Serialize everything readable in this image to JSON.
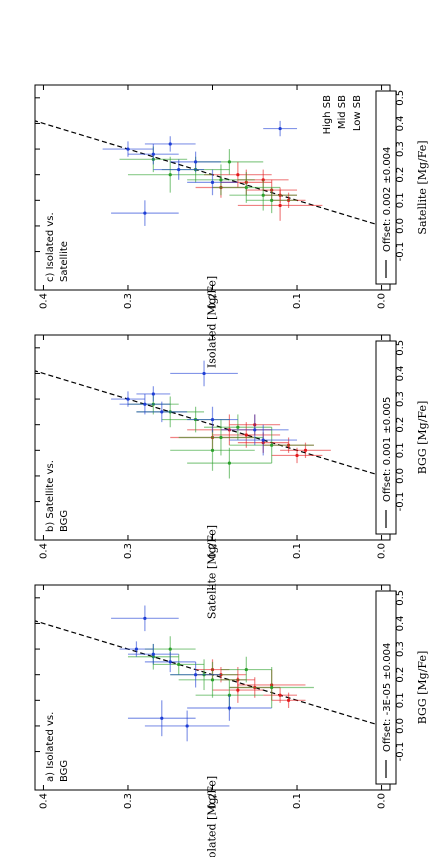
{
  "chart_data": [
    {
      "type": "scatter",
      "title": [
        "a) Isolated vs.",
        "BGG"
      ],
      "xlabel": "BGG [Mg/Fe]",
      "ylabel": "Isolated [Mg/Fe]",
      "legend_text": "Offset: -3E-05 ±0.004",
      "xlim": [
        -0.25,
        0.55
      ],
      "ylim": [
        -0.01,
        0.41
      ],
      "xticks": [
        -0.1,
        {
          "value": 0,
          "label": "0.0"
        },
        0.1,
        0.2,
        0.3,
        0.4,
        0.5
      ],
      "yticks": [
        {
          "value": 0,
          "label": "0.0"
        },
        0.1,
        0.2,
        0.3,
        0.4
      ],
      "series": [
        {
          "color": "#e41a1c",
          "x": [
            0.12,
            0.15,
            0.18,
            0.2,
            0.16,
            0.22,
            0.14,
            0.1
          ],
          "values": [
            0.12,
            0.15,
            0.17,
            0.19,
            0.13,
            0.2,
            0.17,
            0.11
          ],
          "xerr": [
            0.03,
            0.04,
            0.05,
            0.03,
            0.06,
            0.04,
            0.05,
            0.03
          ],
          "yerr": [
            0.02,
            0.03,
            0.02,
            0.03,
            0.04,
            0.02,
            0.03,
            0.02
          ]
        },
        {
          "color": "#2ca02c",
          "x": [
            0.27,
            0.2,
            0.24,
            0.15,
            0.3,
            0.18,
            0.22,
            0.12
          ],
          "values": [
            0.27,
            0.21,
            0.24,
            0.13,
            0.25,
            0.2,
            0.16,
            0.18
          ],
          "xerr": [
            0.05,
            0.06,
            0.04,
            0.08,
            0.05,
            0.07,
            0.05,
            0.06
          ],
          "yerr": [
            0.03,
            0.04,
            0.03,
            0.05,
            0.03,
            0.04,
            0.03,
            0.04
          ]
        },
        {
          "color": "#1f3fd6",
          "x": [
            0.3,
            0.28,
            0.42,
            0.0,
            0.03,
            0.25,
            0.2,
            0.07
          ],
          "values": [
            0.29,
            0.27,
            0.28,
            0.23,
            0.26,
            0.25,
            0.22,
            0.18
          ],
          "xerr": [
            0.03,
            0.04,
            0.05,
            0.06,
            0.07,
            0.04,
            0.05,
            0.05
          ],
          "yerr": [
            0.02,
            0.03,
            0.04,
            0.05,
            0.04,
            0.03,
            0.03,
            0.05
          ]
        }
      ]
    },
    {
      "type": "scatter",
      "title": [
        "b) Satellite vs.",
        "BGG"
      ],
      "xlabel": "BGG [Mg/Fe]",
      "ylabel": "Satellite [Mg/Fe]",
      "legend_text": "Offset: 0.001 ±0.005",
      "xlim": [
        -0.25,
        0.55
      ],
      "ylim": [
        -0.01,
        0.41
      ],
      "xticks": [
        -0.1,
        {
          "value": 0,
          "label": "0.0"
        },
        0.1,
        0.2,
        0.3,
        0.4,
        0.5
      ],
      "yticks": [
        {
          "value": 0,
          "label": "0.0"
        },
        0.1,
        0.2,
        0.3,
        0.4
      ],
      "series": [
        {
          "color": "#e41a1c",
          "x": [
            0.1,
            0.16,
            0.13,
            0.2,
            0.18,
            0.12,
            0.15,
            0.08
          ],
          "values": [
            0.09,
            0.16,
            0.14,
            0.15,
            0.18,
            0.11,
            0.2,
            0.1
          ],
          "xerr": [
            0.03,
            0.05,
            0.04,
            0.04,
            0.06,
            0.03,
            0.05,
            0.03
          ],
          "yerr": [
            0.03,
            0.04,
            0.03,
            0.03,
            0.05,
            0.03,
            0.05,
            0.03
          ]
        },
        {
          "color": "#2ca02c",
          "x": [
            0.15,
            0.22,
            0.05,
            0.25,
            0.12,
            0.19,
            0.28,
            0.1
          ],
          "values": [
            0.19,
            0.22,
            0.18,
            0.25,
            0.13,
            0.17,
            0.27,
            0.2
          ],
          "xerr": [
            0.07,
            0.05,
            0.06,
            0.06,
            0.07,
            0.05,
            0.04,
            0.08
          ],
          "yerr": [
            0.05,
            0.04,
            0.05,
            0.04,
            0.05,
            0.04,
            0.03,
            0.05
          ]
        },
        {
          "color": "#1f3fd6",
          "x": [
            0.3,
            0.28,
            0.25,
            0.4,
            0.14,
            0.22,
            0.32,
            0.18
          ],
          "values": [
            0.3,
            0.28,
            0.26,
            0.21,
            0.14,
            0.2,
            0.27,
            0.15
          ],
          "xerr": [
            0.03,
            0.04,
            0.04,
            0.05,
            0.06,
            0.05,
            0.03,
            0.06
          ],
          "yerr": [
            0.02,
            0.03,
            0.03,
            0.04,
            0.04,
            0.03,
            0.02,
            0.04
          ]
        }
      ]
    },
    {
      "type": "scatter",
      "title": [
        "c) Isolated vs.",
        "Satellite"
      ],
      "xlabel": "Satellite [Mg/Fe]",
      "ylabel": "Isolated [Mg/Fe]",
      "legend_text": "Offset: 0.002 ±0.004",
      "xlim": [
        -0.25,
        0.55
      ],
      "ylim": [
        -0.01,
        0.41
      ],
      "xticks": [
        -0.1,
        {
          "value": 0,
          "label": "0.0"
        },
        0.1,
        0.2,
        0.3,
        0.4,
        0.5
      ],
      "yticks": [
        {
          "value": 0,
          "label": "0.0"
        },
        0.1,
        0.2,
        0.3,
        0.4
      ],
      "series": [
        {
          "name": "High SB",
          "color": "#e41a1c",
          "x": [
            0.1,
            0.14,
            0.17,
            0.12,
            0.2,
            0.15,
            0.08,
            0.18
          ],
          "values": [
            0.11,
            0.13,
            0.16,
            0.12,
            0.17,
            0.19,
            0.12,
            0.14
          ],
          "xerr": [
            0.03,
            0.04,
            0.05,
            0.03,
            0.05,
            0.04,
            0.06,
            0.04
          ],
          "yerr": [
            0.02,
            0.03,
            0.03,
            0.02,
            0.04,
            0.03,
            0.05,
            0.03
          ]
        },
        {
          "name": "Mid SB",
          "color": "#2ca02c",
          "x": [
            0.22,
            0.18,
            0.26,
            0.12,
            0.2,
            0.25,
            0.15,
            0.1
          ],
          "values": [
            0.22,
            0.19,
            0.27,
            0.14,
            0.25,
            0.18,
            0.16,
            0.13
          ],
          "xerr": [
            0.05,
            0.06,
            0.05,
            0.06,
            0.07,
            0.05,
            0.06,
            0.05
          ],
          "yerr": [
            0.04,
            0.04,
            0.04,
            0.04,
            0.05,
            0.04,
            0.04,
            0.03
          ]
        },
        {
          "name": "Low SB",
          "color": "#1f3fd6",
          "x": [
            0.3,
            0.28,
            0.22,
            0.05,
            0.38,
            0.25,
            0.17,
            0.32
          ],
          "values": [
            0.3,
            0.27,
            0.24,
            0.28,
            0.12,
            0.22,
            0.2,
            0.25
          ],
          "xerr": [
            0.03,
            0.04,
            0.04,
            0.05,
            0.03,
            0.04,
            0.05,
            0.03
          ],
          "yerr": [
            0.03,
            0.03,
            0.03,
            0.04,
            0.02,
            0.03,
            0.03,
            0.03
          ]
        }
      ]
    }
  ]
}
